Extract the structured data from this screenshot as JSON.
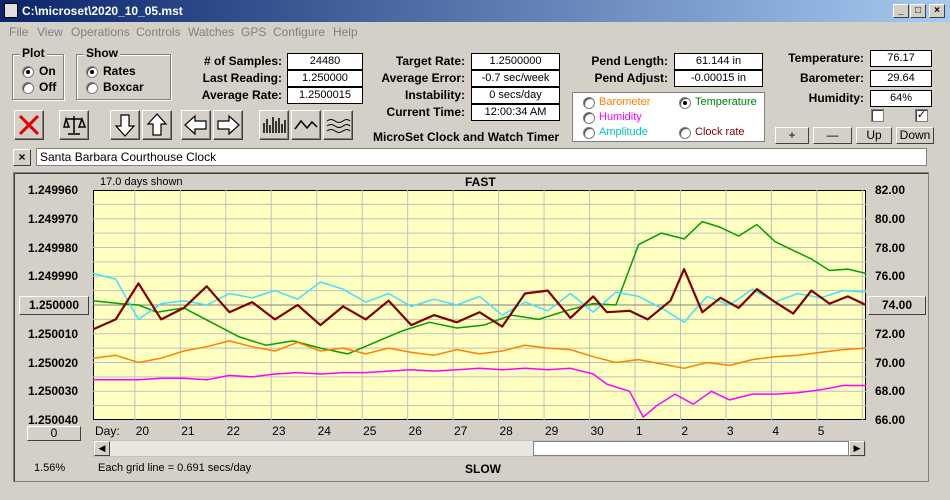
{
  "window": {
    "title": "C:\\microset\\2020_10_05.mst",
    "min": "_",
    "max": "□",
    "close": "×"
  },
  "menu": [
    "File",
    "View",
    "Operations",
    "Controls",
    "Watches",
    "GPS",
    "Configure",
    "Help"
  ],
  "plot": {
    "label": "Plot",
    "on": "On",
    "off": "Off",
    "selected": "on"
  },
  "show": {
    "label": "Show",
    "rates": "Rates",
    "boxcar": "Boxcar",
    "selected": "rates"
  },
  "stats": {
    "samples_label": "# of Samples:",
    "samples": "24480",
    "last_label": "Last Reading:",
    "last": "1.250000",
    "avg_label": "Average Rate:",
    "avg": "1.2500015",
    "target_label": "Target Rate:",
    "target": "1.2500000",
    "err_label": "Average Error:",
    "err": "-0.7 sec/week",
    "inst_label": "Instability:",
    "inst": "0 secs/day",
    "time_label": "Current Time:",
    "time": "12:00:34 AM",
    "pendlen_label": "Pend Length:",
    "pendlen": "61.144 in",
    "pendadj_label": "Pend Adjust:",
    "pendadj": "-0.00015 in",
    "temp_label": "Temperature:",
    "temp": "76.17",
    "baro_label": "Barometer:",
    "baro": "29.64",
    "hum_label": "Humidity:",
    "hum": "64%"
  },
  "app_name": "MicroSet Clock and Watch Timer",
  "sensor_options": {
    "barometer": "Barometer",
    "temperature": "Temperature",
    "humidity": "Humidity",
    "amplitude": "Amplitude",
    "clockrate": "Clock rate",
    "selected": "temperature"
  },
  "colors": {
    "barometer": "#ff8000",
    "temperature": "#008000",
    "humidity": "#ff00ff",
    "amplitude": "#00c0c0",
    "clockrate": "#800000",
    "rate": "#800000",
    "temp_line": "#00a000",
    "baro_line": "#ff8000",
    "amp_line": "#40e0ff",
    "hum_line": "#ff00ff",
    "plot_bg": "#ffffc0"
  },
  "adjust_buttons": {
    "plus": "+",
    "minus": "—",
    "up": "Up",
    "down": "Down"
  },
  "checks": {
    "left": false,
    "right": true
  },
  "watch_name": "Santa Barbara Courthouse Clock",
  "close_btn": "×",
  "chart": {
    "days_shown": "17.0 days shown",
    "fast": "FAST",
    "slow": "SLOW",
    "center_btn": "1.250000",
    "right_btn": "74.00",
    "zero_btn": "0",
    "pct": "1.56%",
    "grid_note": "Each grid line = 0.691 secs/day",
    "day_label": "Day:"
  },
  "chart_data": {
    "type": "line",
    "left_axis": [
      "1.249960",
      "1.249970",
      "1.249980",
      "1.249990",
      "1.250000",
      "1.250010",
      "1.250020",
      "1.250030",
      "1.250040"
    ],
    "right_axis": [
      "82.00",
      "80.00",
      "78.00",
      "76.00",
      "74.00",
      "72.00",
      "70.00",
      "68.00",
      "66.00"
    ],
    "days": [
      "20",
      "21",
      "22",
      "23",
      "24",
      "25",
      "26",
      "27",
      "28",
      "29",
      "30",
      "1",
      "2",
      "3",
      "4",
      "5"
    ],
    "ylim_left": [
      1.24996,
      1.25004
    ],
    "ylim_right": [
      66,
      82
    ],
    "x_range_days": 17.0,
    "series": [
      {
        "color": "temperature",
        "points": [
          [
            0,
            74.3
          ],
          [
            0.6,
            74.1
          ],
          [
            1,
            74.0
          ],
          [
            1.4,
            73.5
          ],
          [
            2,
            73.8
          ],
          [
            2.6,
            72.8
          ],
          [
            3.2,
            71.8
          ],
          [
            3.8,
            71.2
          ],
          [
            4.4,
            71.5
          ],
          [
            5,
            71.0
          ],
          [
            5.6,
            70.6
          ],
          [
            6.2,
            71.4
          ],
          [
            6.8,
            72.2
          ],
          [
            7.4,
            72.8
          ],
          [
            8,
            72.4
          ],
          [
            8.6,
            72.6
          ],
          [
            9.2,
            73.3
          ],
          [
            9.8,
            73.0
          ],
          [
            10.4,
            73.6
          ],
          [
            11,
            74.1
          ],
          [
            11.5,
            74.0
          ],
          [
            12,
            78.2
          ],
          [
            12.5,
            79.0
          ],
          [
            13,
            78.6
          ],
          [
            13.4,
            79.8
          ],
          [
            13.8,
            79.4
          ],
          [
            14.2,
            78.8
          ],
          [
            14.6,
            79.6
          ],
          [
            15,
            78.4
          ],
          [
            15.4,
            77.8
          ],
          [
            15.8,
            77.2
          ],
          [
            16.2,
            76.4
          ],
          [
            16.6,
            76.5
          ],
          [
            17,
            76.2
          ]
        ]
      },
      {
        "color": "amplitude",
        "points": [
          [
            0,
            76.2
          ],
          [
            0.5,
            75.8
          ],
          [
            1,
            73.0
          ],
          [
            1.5,
            74.1
          ],
          [
            2,
            74.3
          ],
          [
            2.5,
            74.0
          ],
          [
            3,
            74.8
          ],
          [
            3.5,
            74.5
          ],
          [
            4,
            75.0
          ],
          [
            4.5,
            74.4
          ],
          [
            5,
            75.6
          ],
          [
            5.5,
            75.1
          ],
          [
            6,
            74.2
          ],
          [
            6.5,
            74.8
          ],
          [
            7,
            73.9
          ],
          [
            7.5,
            74.4
          ],
          [
            8,
            74.0
          ],
          [
            8.5,
            74.6
          ],
          [
            9,
            73.3
          ],
          [
            9.5,
            74.2
          ],
          [
            10,
            73.6
          ],
          [
            10.5,
            74.8
          ],
          [
            11,
            73.5
          ],
          [
            11.5,
            74.9
          ],
          [
            12,
            74.6
          ],
          [
            12.5,
            73.8
          ],
          [
            13,
            72.8
          ],
          [
            13.5,
            74.6
          ],
          [
            14,
            74.0
          ],
          [
            14.5,
            75.1
          ],
          [
            15,
            74.2
          ],
          [
            15.5,
            74.8
          ],
          [
            16,
            74.5
          ],
          [
            16.5,
            75.0
          ],
          [
            17,
            74.9
          ]
        ]
      },
      {
        "color": "clockrate",
        "points": [
          [
            0,
            72.3
          ],
          [
            0.5,
            73.0
          ],
          [
            1,
            75.5
          ],
          [
            1.5,
            73.0
          ],
          [
            2,
            73.8
          ],
          [
            2.5,
            75.3
          ],
          [
            3,
            73.5
          ],
          [
            3.5,
            74.2
          ],
          [
            4,
            73.0
          ],
          [
            4.5,
            74.0
          ],
          [
            5,
            72.6
          ],
          [
            5.5,
            73.9
          ],
          [
            6,
            73.0
          ],
          [
            6.5,
            74.3
          ],
          [
            7,
            72.6
          ],
          [
            7.5,
            73.3
          ],
          [
            8,
            72.8
          ],
          [
            8.5,
            73.5
          ],
          [
            9,
            72.5
          ],
          [
            9.5,
            74.8
          ],
          [
            10,
            75.0
          ],
          [
            10.5,
            73.1
          ],
          [
            11,
            74.6
          ],
          [
            11.3,
            73.5
          ],
          [
            11.8,
            73.6
          ],
          [
            12.2,
            73.0
          ],
          [
            12.7,
            74.3
          ],
          [
            13,
            76.5
          ],
          [
            13.4,
            73.5
          ],
          [
            13.8,
            74.5
          ],
          [
            14.2,
            73.8
          ],
          [
            14.6,
            75.1
          ],
          [
            15,
            74.2
          ],
          [
            15.4,
            73.4
          ],
          [
            15.8,
            75.0
          ],
          [
            16.2,
            74.1
          ],
          [
            16.6,
            74.6
          ],
          [
            17,
            74.0
          ]
        ]
      },
      {
        "color": "barometer",
        "points": [
          [
            0,
            70.3
          ],
          [
            0.5,
            70.5
          ],
          [
            1,
            70.0
          ],
          [
            1.5,
            70.3
          ],
          [
            2,
            70.8
          ],
          [
            2.5,
            71.1
          ],
          [
            3,
            71.5
          ],
          [
            3.5,
            71.1
          ],
          [
            4,
            70.8
          ],
          [
            4.5,
            71.4
          ],
          [
            5,
            70.8
          ],
          [
            5.5,
            71.0
          ],
          [
            6,
            70.6
          ],
          [
            6.5,
            71.0
          ],
          [
            7,
            70.7
          ],
          [
            7.5,
            70.5
          ],
          [
            8,
            70.9
          ],
          [
            8.5,
            70.6
          ],
          [
            9,
            70.8
          ],
          [
            9.5,
            71.2
          ],
          [
            10,
            71.0
          ],
          [
            10.5,
            70.9
          ],
          [
            11,
            70.4
          ],
          [
            11.5,
            70.0
          ],
          [
            12,
            70.2
          ],
          [
            12.5,
            69.9
          ],
          [
            13,
            69.6
          ],
          [
            13.5,
            70.0
          ],
          [
            14,
            69.8
          ],
          [
            14.5,
            70.2
          ],
          [
            15,
            70.4
          ],
          [
            15.5,
            70.5
          ],
          [
            16,
            70.7
          ],
          [
            16.5,
            70.9
          ],
          [
            17,
            71.0
          ]
        ]
      },
      {
        "color": "humidity",
        "points": [
          [
            0,
            68.8
          ],
          [
            0.5,
            68.8
          ],
          [
            1,
            68.8
          ],
          [
            1.5,
            68.9
          ],
          [
            2,
            68.9
          ],
          [
            2.5,
            68.8
          ],
          [
            3,
            69.1
          ],
          [
            3.5,
            69.0
          ],
          [
            4,
            69.2
          ],
          [
            4.5,
            69.3
          ],
          [
            5,
            69.2
          ],
          [
            5.5,
            69.3
          ],
          [
            6,
            69.3
          ],
          [
            6.5,
            69.4
          ],
          [
            7,
            69.5
          ],
          [
            7.5,
            69.4
          ],
          [
            8,
            69.5
          ],
          [
            8.5,
            69.6
          ],
          [
            9,
            69.5
          ],
          [
            9.5,
            69.6
          ],
          [
            10,
            69.5
          ],
          [
            10.5,
            69.6
          ],
          [
            11,
            69.2
          ],
          [
            11.3,
            68.5
          ],
          [
            11.8,
            68.0
          ],
          [
            12.1,
            66.2
          ],
          [
            12.4,
            67.0
          ],
          [
            12.8,
            67.8
          ],
          [
            13.2,
            67.1
          ],
          [
            13.6,
            68.0
          ],
          [
            14,
            67.4
          ],
          [
            14.5,
            67.8
          ],
          [
            15,
            67.8
          ],
          [
            15.5,
            67.9
          ],
          [
            16,
            68.1
          ],
          [
            16.5,
            68.4
          ],
          [
            17,
            68.4
          ]
        ]
      }
    ]
  }
}
